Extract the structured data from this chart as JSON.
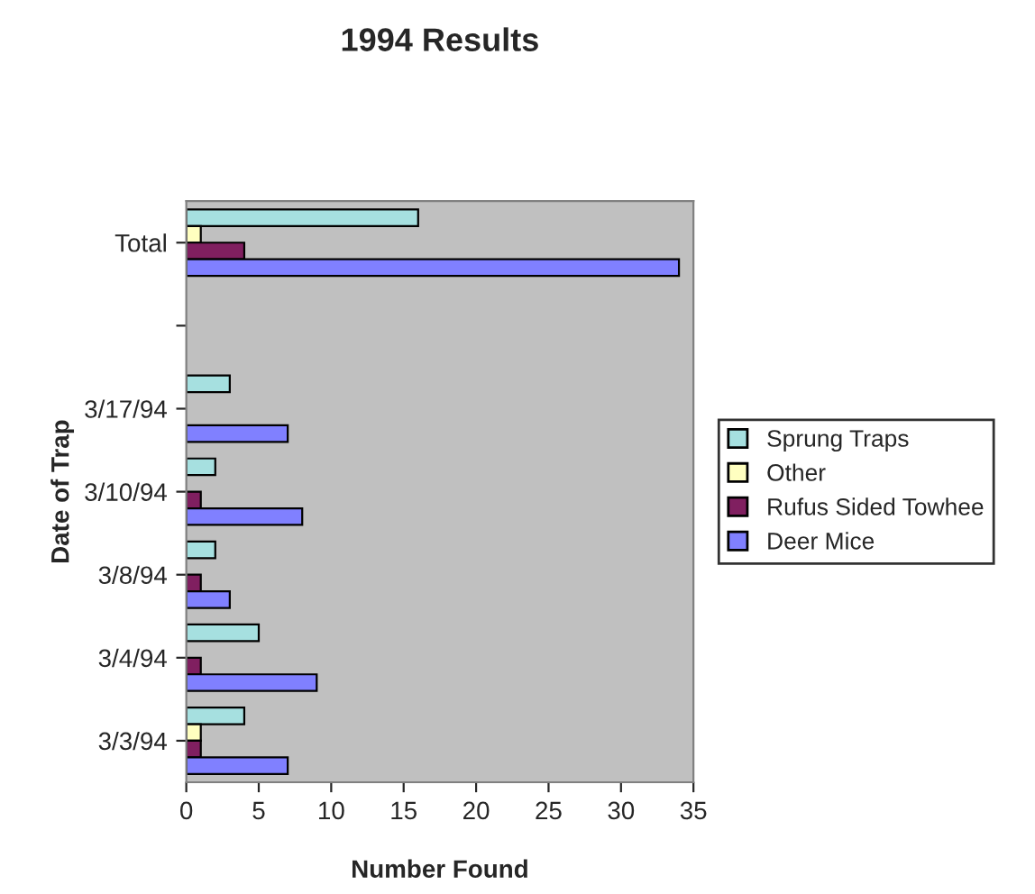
{
  "chart_data": {
    "type": "bar",
    "orientation": "horizontal",
    "title": "1994 Results",
    "xlabel": "Number Found",
    "ylabel": "Date of Trap",
    "categories": [
      "Total",
      null,
      "3/17/94",
      "3/10/94",
      "3/8/94",
      "3/4/94",
      "3/3/94"
    ],
    "series": [
      {
        "name": "Sprung Traps",
        "color": "#a6e0e0",
        "values": [
          16,
          null,
          3,
          2,
          2,
          5,
          4
        ]
      },
      {
        "name": "Other",
        "color": "#ffffc0",
        "values": [
          1,
          null,
          0,
          0,
          0,
          0,
          1
        ]
      },
      {
        "name": "Rufus Sided Towhee",
        "color": "#801f60",
        "values": [
          4,
          null,
          0,
          1,
          1,
          1,
          1
        ]
      },
      {
        "name": "Deer Mice",
        "color": "#8080ff",
        "values": [
          34,
          null,
          7,
          8,
          3,
          9,
          7
        ]
      }
    ],
    "xlim": [
      0,
      35
    ],
    "xticks": [
      0,
      5,
      10,
      15,
      20,
      25,
      30,
      35
    ],
    "grid": false,
    "legend": "right"
  }
}
